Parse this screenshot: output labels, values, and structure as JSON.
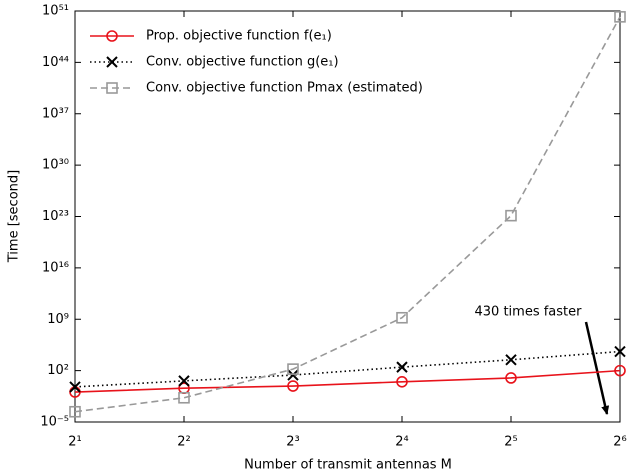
{
  "chart_data": {
    "type": "line",
    "x_label": "Number of transmit antennas M",
    "y_label": "Time [second]",
    "x": [
      2,
      4,
      8,
      16,
      32,
      64
    ],
    "x_log_base": 2,
    "y_log": true,
    "series": [
      {
        "name": "Prop. objective function f(e₁)",
        "color": "#e8131b",
        "line": "solid",
        "marker": "circle",
        "values": [
          0.12,
          0.4,
          0.8,
          3,
          10,
          100
        ]
      },
      {
        "name": "Conv. objective function g(e₁)",
        "color": "#000000",
        "line": "dotted",
        "marker": "x",
        "values": [
          0.6,
          4,
          25,
          300,
          3000,
          40000
        ]
      },
      {
        "name": "Conv. objective function Pmax (estimated)",
        "color": "#999999",
        "line": "dashed",
        "marker": "square",
        "values": [
          0.00025,
          0.02,
          160,
          1600000000.0,
          1.3e+23,
          1.6e+50
        ]
      }
    ],
    "xlim": [
      2,
      64
    ],
    "xticks": [
      {
        "value": 2,
        "label": "2¹"
      },
      {
        "value": 4,
        "label": "2²"
      },
      {
        "value": 8,
        "label": "2³"
      },
      {
        "value": 16,
        "label": "2⁴"
      },
      {
        "value": 32,
        "label": "2⁵"
      },
      {
        "value": 64,
        "label": "2⁶"
      }
    ],
    "ylim": [
      1e-05,
      1e+51
    ],
    "yticks": [
      {
        "value": 1e-05,
        "label": "10⁻⁵"
      },
      {
        "value": 100,
        "label": "10²"
      },
      {
        "value": 1000000000.0,
        "label": "10⁹"
      },
      {
        "value": 1e+16,
        "label": "10¹⁶"
      },
      {
        "value": 1e+23,
        "label": "10²³"
      },
      {
        "value": 1e+30,
        "label": "10³⁰"
      },
      {
        "value": 1e+37,
        "label": "10³⁷"
      },
      {
        "value": 1e+44,
        "label": "10⁴⁴"
      },
      {
        "value": 1e+51,
        "label": "10⁵¹"
      }
    ],
    "legend": "upper left",
    "annotation": "430 times faster"
  }
}
